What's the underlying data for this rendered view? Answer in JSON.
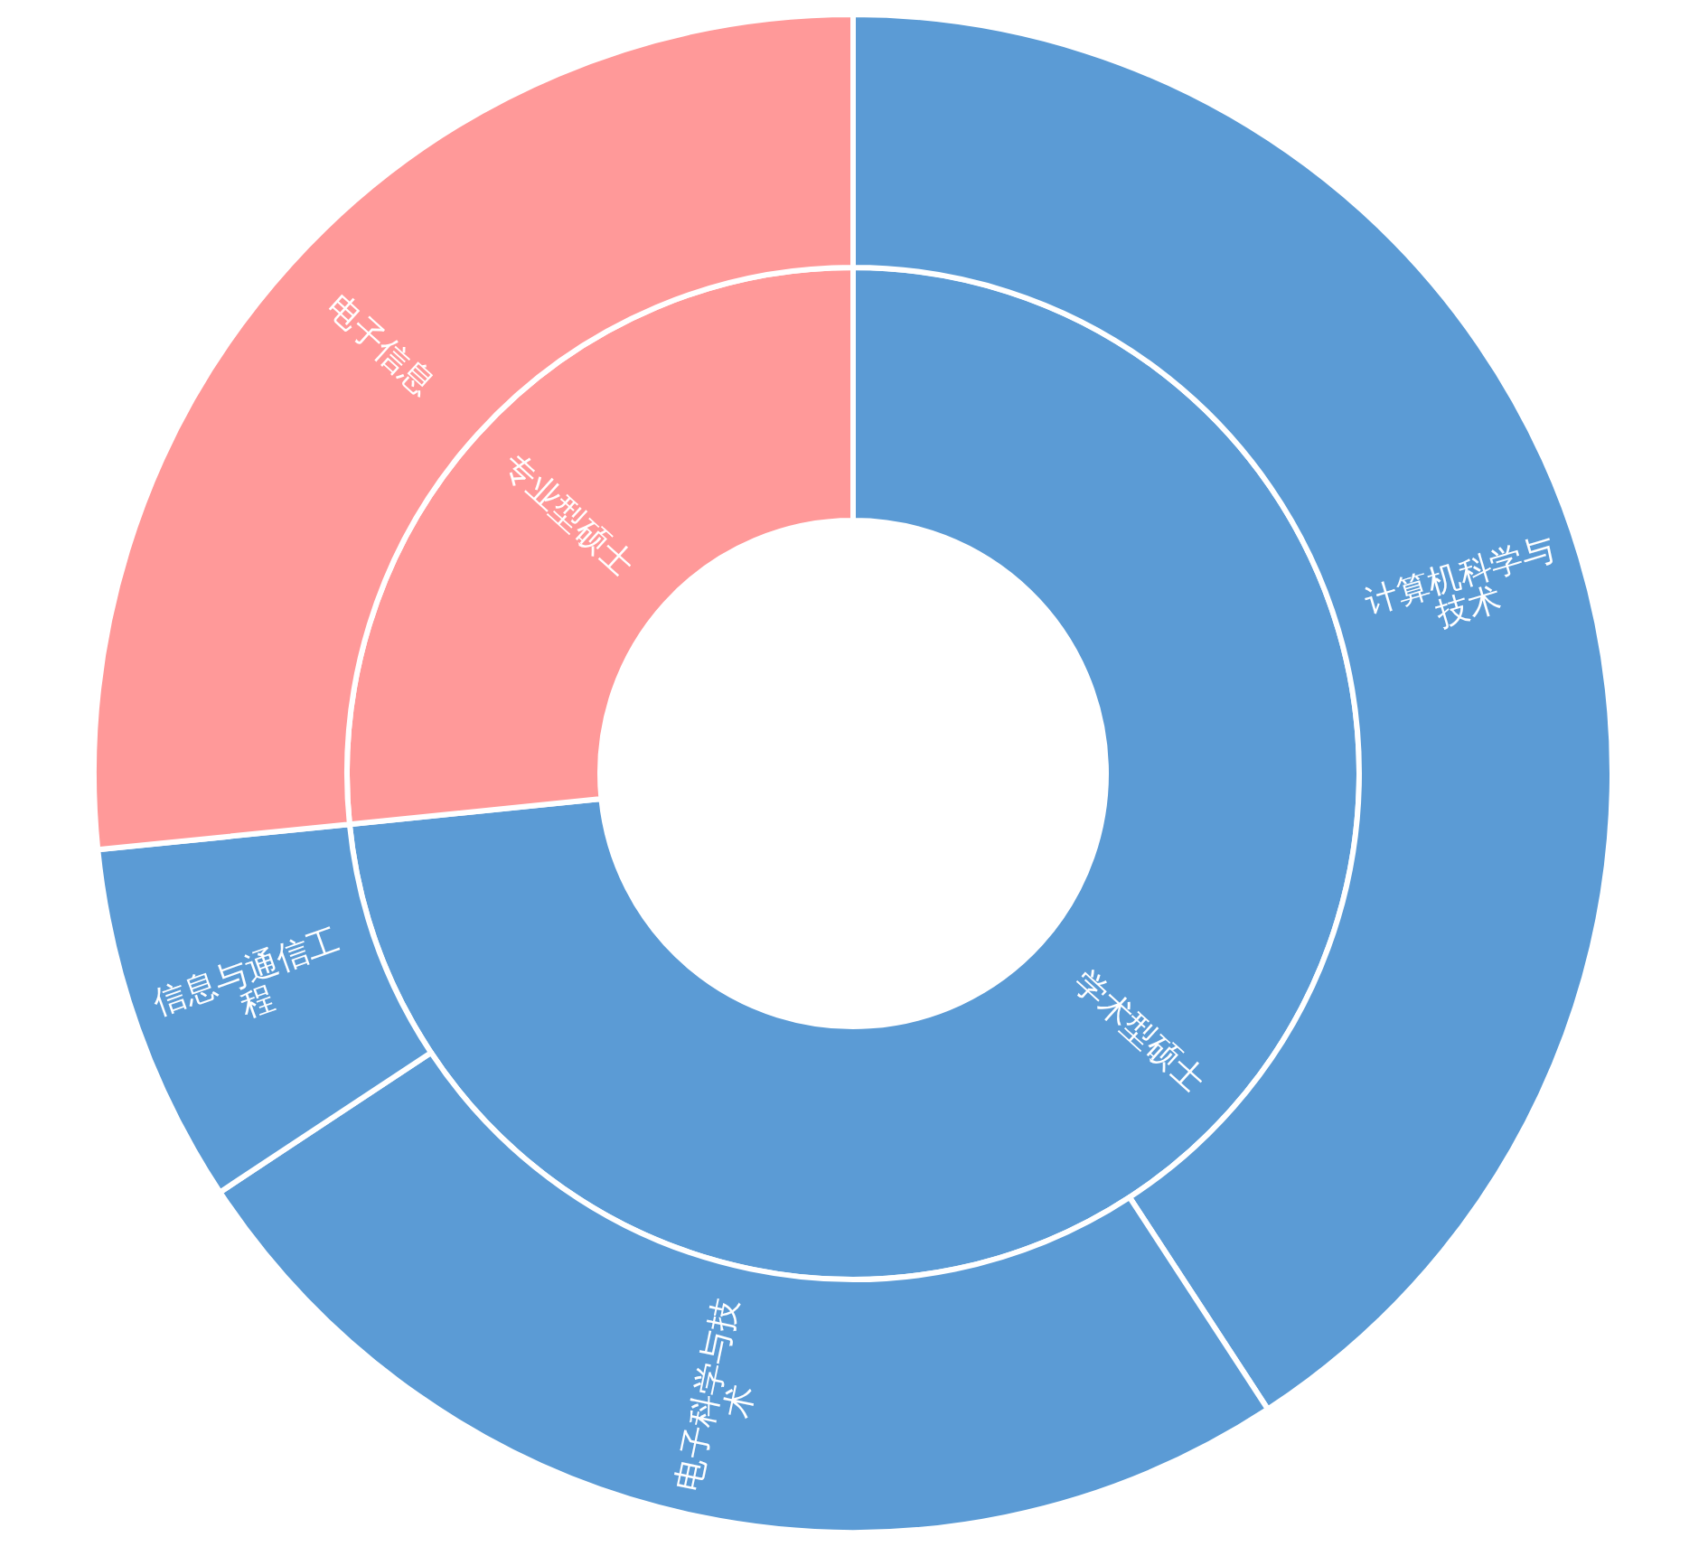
{
  "chart_data": [
    {
      "type": "donut",
      "categories": [
        "学术型硕士",
        "专业型硕士"
      ],
      "values": [
        73.4,
        26.6
      ],
      "colors": [
        "#5b9bd5",
        "#ff9999"
      ],
      "legend": false
    },
    {
      "type": "donut",
      "categories": [
        "计算机科学与技术",
        "电子科学与技术",
        "信息与通信工程",
        "电子信息"
      ],
      "values": [
        40.8,
        24.9,
        7.7,
        26.6
      ],
      "colors": [
        "#5b9bd5",
        "#5b9bd5",
        "#5b9bd5",
        "#ff9999"
      ],
      "legend": false
    }
  ]
}
